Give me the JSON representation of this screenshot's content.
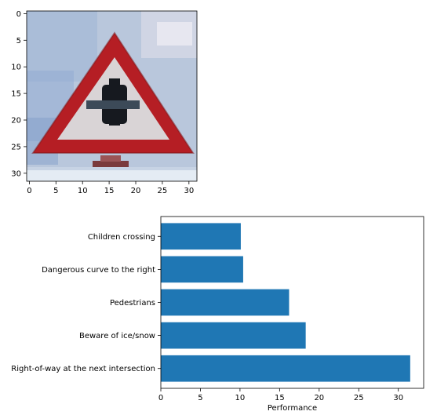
{
  "chart_data": [
    {
      "type": "image",
      "image_size": [
        32,
        32
      ],
      "xticks": [
        0,
        5,
        10,
        15,
        20,
        25,
        30
      ],
      "yticks": [
        0,
        5,
        10,
        15,
        20,
        25,
        30
      ],
      "xlim": [
        -0.5,
        31.5
      ],
      "ylim": [
        31.5,
        -0.5
      ],
      "colors": {
        "sky": "#b8c6dc",
        "sky_dark": "#8ea6cc",
        "border_red": "#b51e24",
        "inner_white": "#d8d4d6",
        "symbol_black": "#14181e",
        "bottom_strip": "#e6eef4"
      }
    },
    {
      "type": "bar",
      "orientation": "horizontal",
      "categories": [
        "Right-of-way at the next intersection",
        "Beware of ice/snow",
        "Pedestrians",
        "Dangerous curve to the right",
        "Children crossing"
      ],
      "values": [
        31.5,
        18.3,
        16.2,
        10.4,
        10.1
      ],
      "xlabel": "Performance",
      "xticks": [
        0,
        5,
        10,
        15,
        20,
        25,
        30
      ],
      "xlim": [
        0,
        33.2
      ],
      "bar_color": "#1f77b4"
    }
  ]
}
